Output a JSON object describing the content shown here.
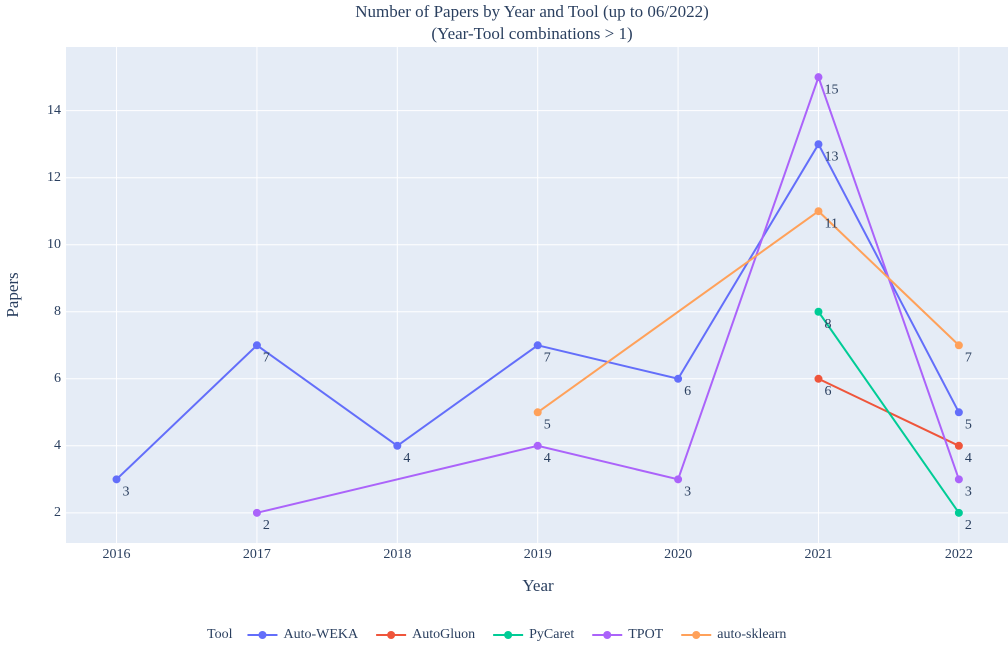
{
  "chart_data": {
    "type": "line",
    "title": "Number of Papers by Year and Tool (up to 06/2022)",
    "subtitle": "(Year-Tool combinations > 1)",
    "x_label": "Year",
    "y_label": "Papers",
    "legend_title": "Tool",
    "legend": "bottom",
    "grid": true,
    "xlim": [
      2015.64,
      2022.35
    ],
    "xticks": [
      2016,
      2017,
      2018,
      2019,
      2020,
      2021,
      2022
    ],
    "ylim": [
      1.1,
      15.9
    ],
    "yticks": [
      2,
      4,
      6,
      8,
      10,
      12,
      14
    ],
    "series": [
      {
        "name": "Auto-WEKA",
        "color": "#636efa",
        "x": [
          2016,
          2017,
          2018,
          2019,
          2020,
          2021,
          2022
        ],
        "values": [
          3,
          7,
          4,
          7,
          6,
          13,
          5
        ]
      },
      {
        "name": "AutoGluon",
        "color": "#ef553b",
        "x": [
          2021,
          2022
        ],
        "values": [
          6,
          4
        ]
      },
      {
        "name": "PyCaret",
        "color": "#00cc96",
        "x": [
          2021,
          2022
        ],
        "values": [
          8,
          2
        ]
      },
      {
        "name": "TPOT",
        "color": "#ab63fa",
        "x": [
          2017,
          2019,
          2020,
          2021,
          2022
        ],
        "values": [
          2,
          4,
          3,
          15,
          3
        ]
      },
      {
        "name": "auto-sklearn",
        "color": "#ffa15a",
        "x": [
          2019,
          2021,
          2022
        ],
        "values": [
          5,
          11,
          7
        ]
      }
    ]
  }
}
